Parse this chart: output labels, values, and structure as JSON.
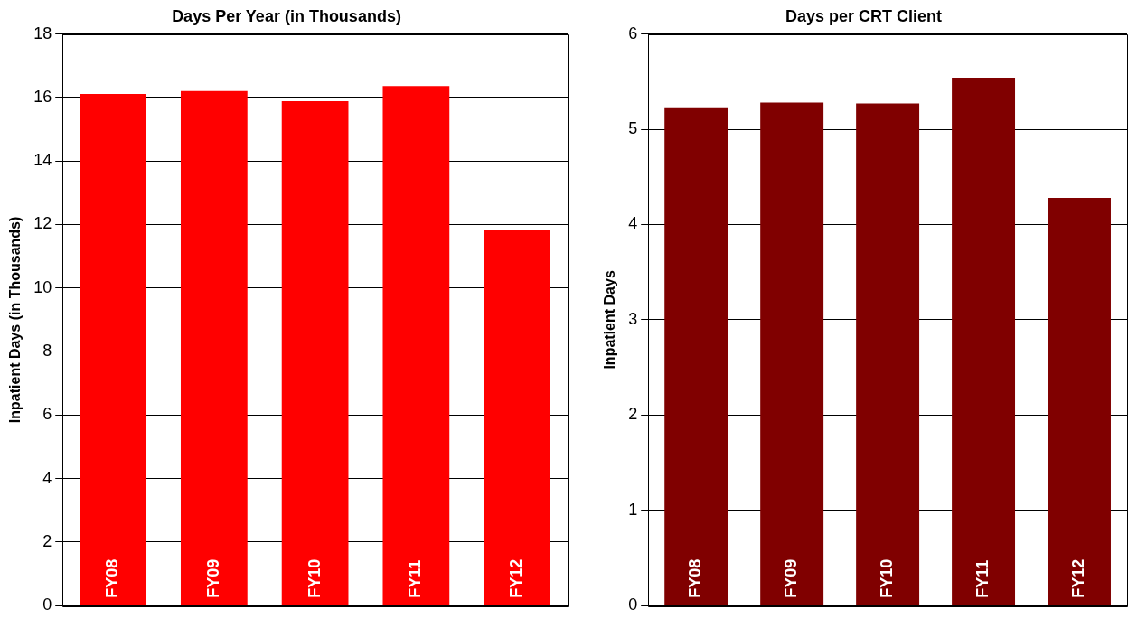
{
  "chart_data": [
    {
      "type": "bar",
      "title": "Days Per Year (in Thousands)",
      "ylabel": "Inpatient Days (in Thousands)",
      "categories": [
        "FY08",
        "FY09",
        "FY10",
        "FY11",
        "FY12"
      ],
      "values": [
        16.11,
        16.2,
        15.88,
        16.36,
        11.84
      ],
      "color": "#ff0000",
      "ylim": [
        0,
        18
      ],
      "yticks": [
        0,
        2,
        4,
        6,
        8,
        10,
        12,
        14,
        16,
        18
      ],
      "grid": "y",
      "legend": false
    },
    {
      "type": "bar",
      "title": "Days per CRT Client",
      "ylabel": "Inpatient Days",
      "categories": [
        "FY08",
        "FY09",
        "FY10",
        "FY11",
        "FY12"
      ],
      "values": [
        5.23,
        5.28,
        5.27,
        5.54,
        4.28
      ],
      "color": "#800000",
      "ylim": [
        0,
        6
      ],
      "yticks": [
        0,
        1,
        2,
        3,
        4,
        5,
        6
      ],
      "grid": "y",
      "legend": false
    }
  ]
}
